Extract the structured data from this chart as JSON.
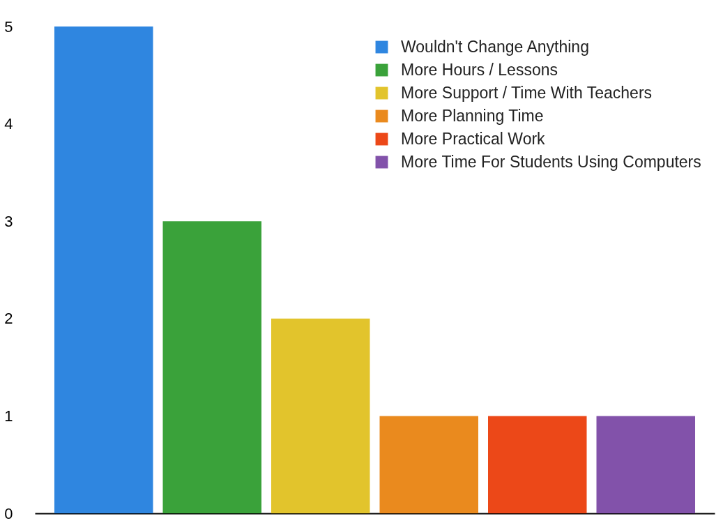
{
  "chart_data": {
    "type": "bar",
    "categories": [
      null,
      null,
      null,
      null,
      null,
      null
    ],
    "series": [
      {
        "name": "Wouldn't Change Anything",
        "color": "#2f86e0",
        "values": [
          5,
          null,
          null,
          null,
          null,
          null
        ]
      },
      {
        "name": "More Hours / Lessons",
        "color": "#3aa23a",
        "values": [
          null,
          3,
          null,
          null,
          null,
          null
        ]
      },
      {
        "name": "More Support / Time With Teachers",
        "color": "#e2c42c",
        "values": [
          null,
          null,
          2,
          null,
          null,
          null
        ]
      },
      {
        "name": "More Planning Time",
        "color": "#ea8a1e",
        "values": [
          null,
          null,
          null,
          1,
          null,
          null
        ]
      },
      {
        "name": "More Practical Work",
        "color": "#ec4818",
        "values": [
          null,
          null,
          null,
          null,
          1,
          null
        ]
      },
      {
        "name": "More Time For Students Using Computers",
        "color": "#8252aa",
        "values": [
          null,
          null,
          null,
          null,
          null,
          1
        ]
      }
    ],
    "ylim": [
      0,
      5
    ],
    "yticks": [
      0,
      1,
      2,
      3,
      4,
      5
    ],
    "grid": false,
    "legend": "top right",
    "tick_labels": "y"
  }
}
